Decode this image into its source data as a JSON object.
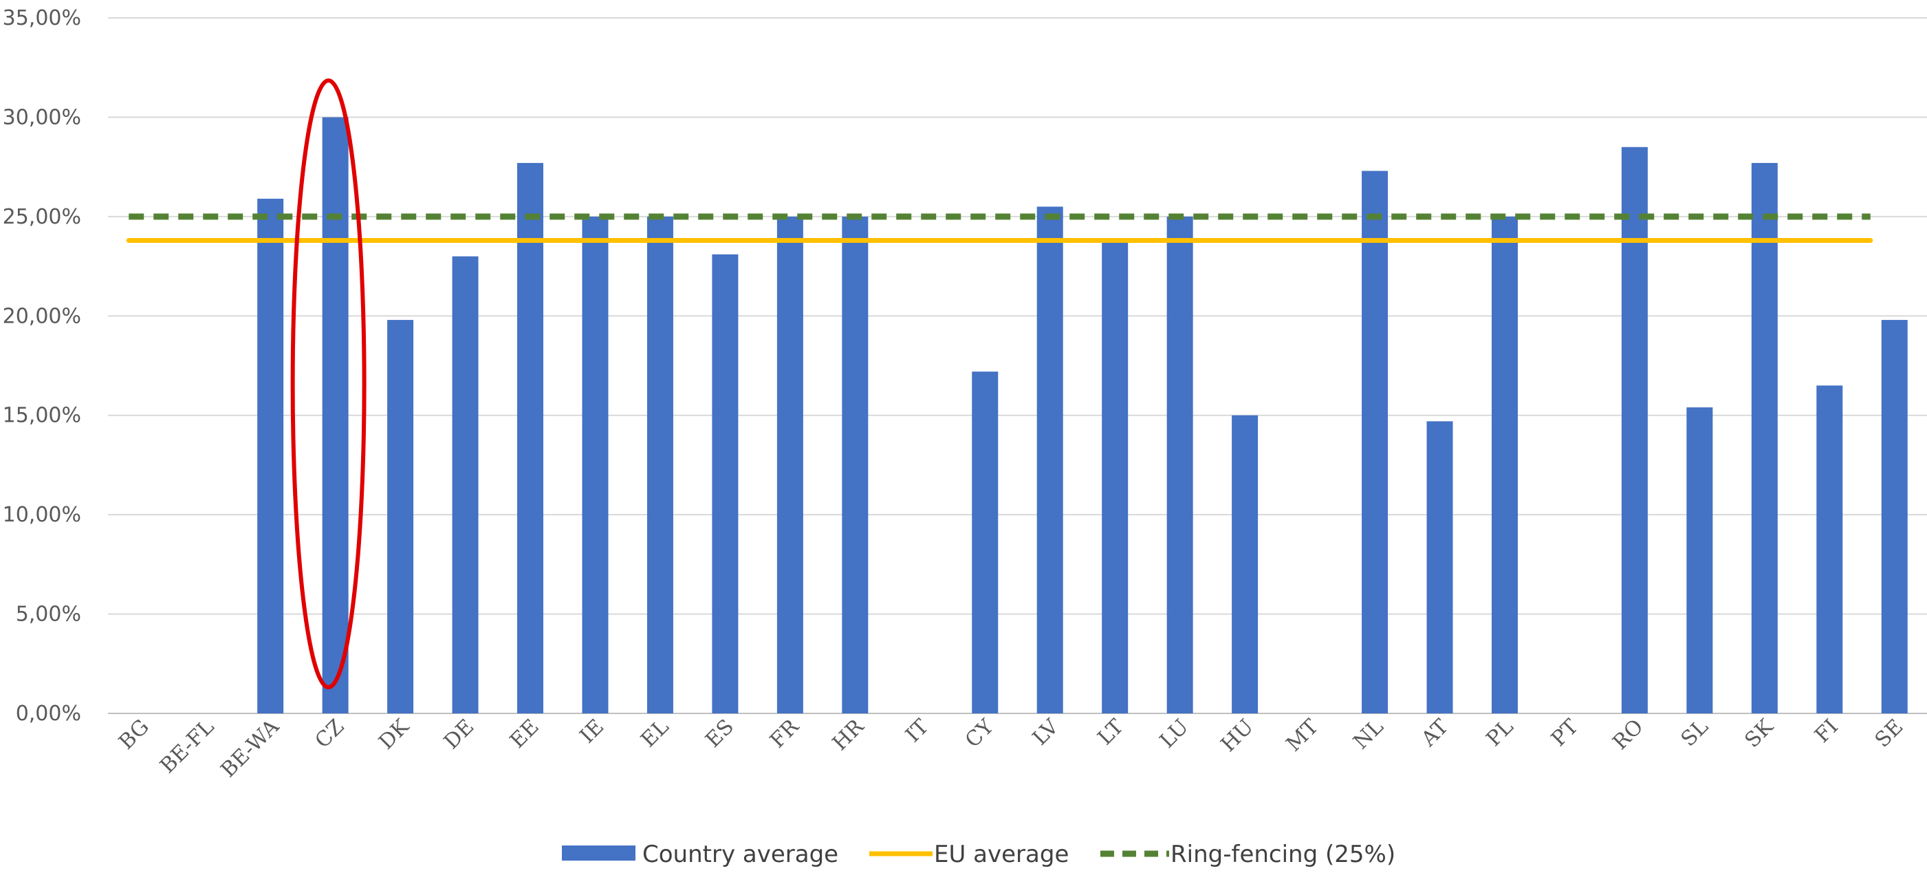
{
  "chart_data": {
    "type": "bar",
    "title": "",
    "xlabel": "",
    "ylabel": "",
    "categories": [
      "BG",
      "BE-FL",
      "BE-WA",
      "CZ",
      "DK",
      "DE",
      "EE",
      "IE",
      "EL",
      "ES",
      "FR",
      "HR",
      "IT",
      "CY",
      "LV",
      "LT",
      "LU",
      "HU",
      "MT",
      "NL",
      "AT",
      "PL",
      "PT",
      "RO",
      "SL",
      "SK",
      "FI",
      "SE"
    ],
    "series": [
      {
        "name": "Country average",
        "color": "#4472C4",
        "values": [
          null,
          null,
          25.9,
          30.0,
          19.8,
          23.0,
          27.7,
          25.0,
          25.0,
          23.1,
          25.0,
          25.0,
          null,
          17.2,
          25.5,
          23.8,
          25.0,
          15.0,
          null,
          27.3,
          14.7,
          25.0,
          null,
          28.5,
          15.4,
          27.7,
          16.5,
          19.8
        ]
      }
    ],
    "reference_lines": [
      {
        "name": "EU average",
        "value": 23.8,
        "color": "#FFC000",
        "style": "solid"
      },
      {
        "name": "Ring-fencing (25%)",
        "value": 25.0,
        "color": "#548235",
        "style": "dashed"
      }
    ],
    "ylim": [
      0,
      35
    ],
    "yticks": [
      0,
      5,
      10,
      15,
      20,
      25,
      30,
      35
    ],
    "ytick_labels": [
      "0,00%",
      "5,00%",
      "10,00%",
      "15,00%",
      "20,00%",
      "25,00%",
      "30,00%",
      "35,00%"
    ],
    "grid": true,
    "legend_position": "bottom",
    "highlight": {
      "category": "CZ",
      "shape": "ellipse",
      "color": "#E00000"
    }
  },
  "legend": {
    "items": [
      {
        "label": "Country average",
        "kind": "bar",
        "color": "#4472C4"
      },
      {
        "label": "EU average",
        "kind": "solid-line",
        "color": "#FFC000"
      },
      {
        "label": "Ring-fencing (25%)",
        "kind": "dashed-line",
        "color": "#548235"
      }
    ]
  }
}
